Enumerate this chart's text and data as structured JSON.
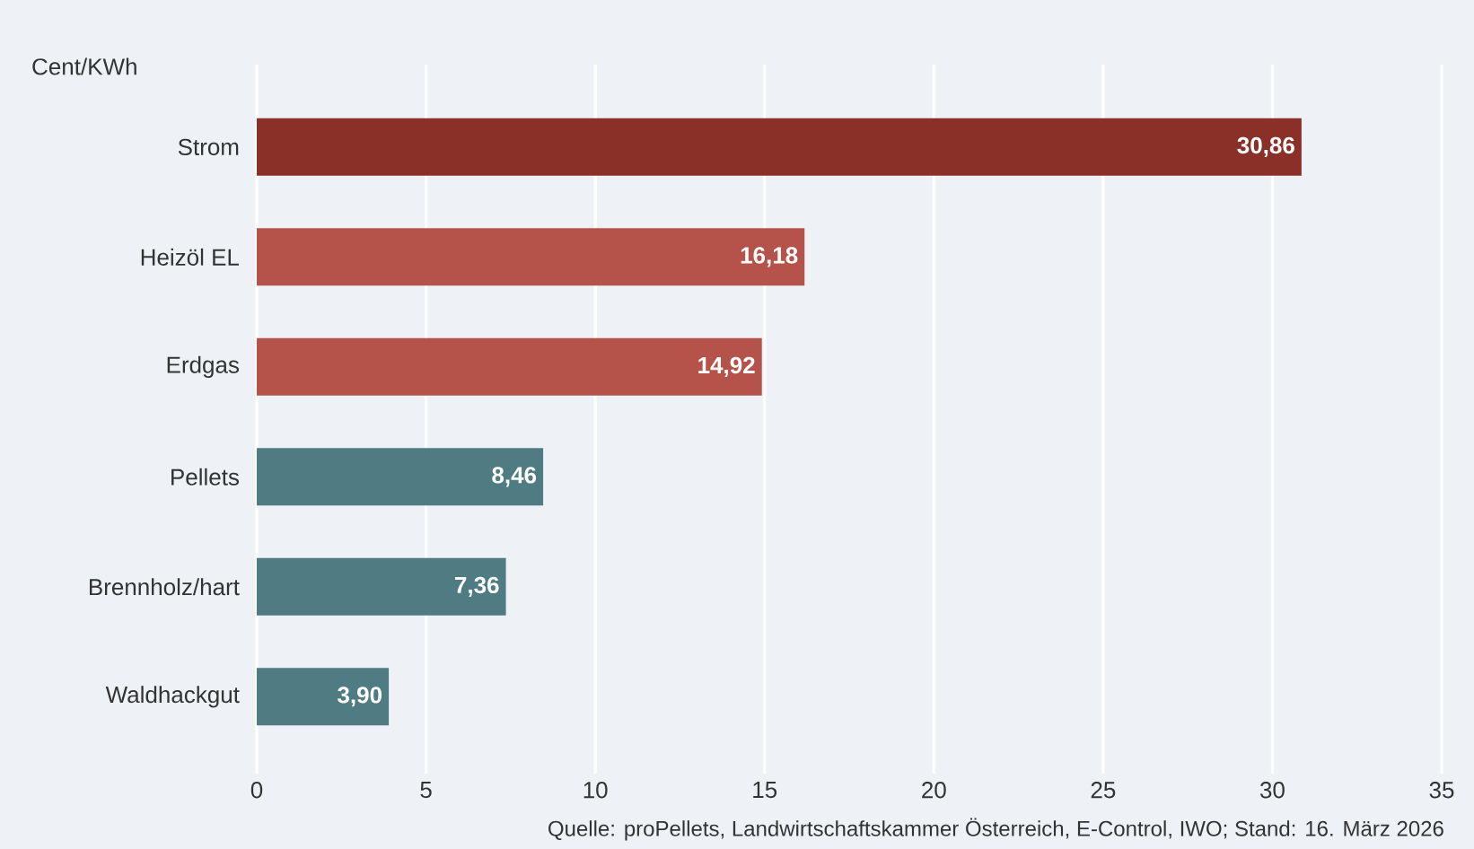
{
  "chart_data": {
    "type": "bar",
    "orientation": "horizontal",
    "ylabel": "Cent/KWh",
    "categories": [
      "Strom",
      "Heizöl EL",
      "Erdgas",
      "Pellets",
      "Brennholz/hart",
      "Waldhackgut"
    ],
    "values": [
      30.86,
      16.18,
      14.92,
      8.46,
      7.36,
      3.9
    ],
    "value_labels": [
      "30,86",
      "16,18",
      "14,92",
      "8,46",
      "7,36",
      "3,90"
    ],
    "colors": [
      "#8b3029",
      "#b5534a",
      "#b5534a",
      "#4f7c82",
      "#4f7c82",
      "#4f7c82"
    ],
    "xlim": [
      0,
      35
    ],
    "xticks": [
      0,
      5,
      10,
      15,
      20,
      25,
      30,
      35
    ],
    "grid": "x",
    "annotations": [
      "Quelle: proPellets, Landwirtschaftskammer Österreich, E-Control, IWO; Stand: 16. März 2026"
    ]
  }
}
